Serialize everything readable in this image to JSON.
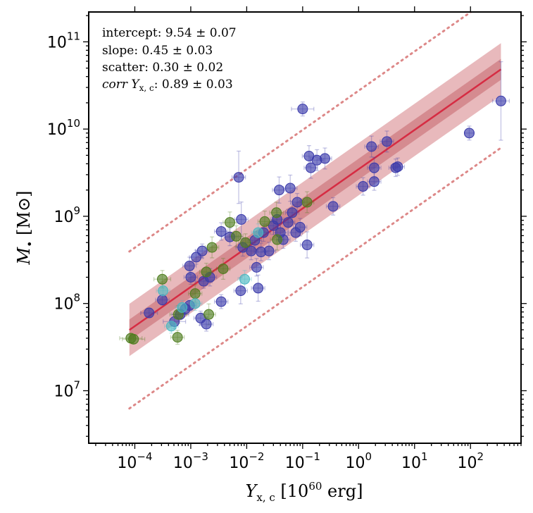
{
  "chart_data": {
    "type": "scatter",
    "xlabel": {
      "main": "Y",
      "sub": "x, c",
      "unit_pre": "[10",
      "unit_exp": "60",
      "unit_post": " erg]"
    },
    "ylabel": {
      "main": "M",
      "sub": "•",
      "unit": "[M⊙]"
    },
    "xscale": "log",
    "yscale": "log",
    "xlim": [
      1.5e-05,
      800
    ],
    "ylim": [
      2500000.0,
      220000000000.0
    ],
    "x_ticks": [
      {
        "value": 0.0001,
        "base": "10",
        "exp": "−4"
      },
      {
        "value": 0.001,
        "base": "10",
        "exp": "−3"
      },
      {
        "value": 0.01,
        "base": "10",
        "exp": "−2"
      },
      {
        "value": 0.1,
        "base": "10",
        "exp": "−1"
      },
      {
        "value": 1,
        "base": "10",
        "exp": "0"
      },
      {
        "value": 10,
        "base": "10",
        "exp": "1"
      },
      {
        "value": 100,
        "base": "10",
        "exp": "2"
      }
    ],
    "y_ticks": [
      {
        "value": 10000000.0,
        "base": "10",
        "exp": "7"
      },
      {
        "value": 100000000.0,
        "base": "10",
        "exp": "8"
      },
      {
        "value": 1000000000.0,
        "base": "10",
        "exp": "9"
      },
      {
        "value": 10000000000.0,
        "base": "10",
        "exp": "10"
      },
      {
        "value": 100000000000.0,
        "base": "10",
        "exp": "11"
      }
    ],
    "annotations": [
      {
        "label": "intercept",
        "value": "9.54 ± 0.07"
      },
      {
        "label": "slope",
        "value": "0.45 ± 0.03"
      },
      {
        "label": "scatter",
        "value": "0.30 ± 0.02"
      },
      {
        "label": "corr Y",
        "sub": "x, c",
        "value": "0.89 ± 0.03"
      }
    ],
    "fit": {
      "intercept": 9.54,
      "slope": 0.45,
      "scatter": 0.3,
      "inner_band": 0.12,
      "outer_band": 0.3,
      "dotted_offset": 0.9
    },
    "colors": {
      "blue": "#3a3aaa",
      "green": "#4e7d1e",
      "cyan": "#4bb9c2",
      "fit_line": "#d62c43",
      "fit_band": "#e0a2a5",
      "fit_band_inner": "#cf7f85",
      "dotted": "#dd8888"
    },
    "series": [
      {
        "color": "blue",
        "points": [
          [
            0.00018,
            78000000.0,
            0.15,
            0.05
          ],
          [
            0.00031,
            110000000.0,
            0.12,
            0.06
          ],
          [
            0.00051,
            62000000.0,
            0.2,
            0.08
          ],
          [
            0.00065,
            75000000.0,
            0.15,
            0.06
          ],
          [
            0.0008,
            87000000.0,
            0.12,
            0.06
          ],
          [
            0.00095,
            270000000.0,
            0.12,
            0.1
          ],
          [
            0.001,
            200000000.0,
            0.12,
            0.08
          ],
          [
            0.00095,
            95000000.0,
            0.12,
            0.06
          ],
          [
            0.00125,
            340000000.0,
            0.12,
            0.08
          ],
          [
            0.0015,
            68000000.0,
            0.12,
            0.08
          ],
          [
            0.0016,
            400000000.0,
            0.12,
            0.08
          ],
          [
            0.0017,
            180000000.0,
            0.15,
            0.08
          ],
          [
            0.0019,
            58000000.0,
            0.12,
            0.08
          ],
          [
            0.0022,
            200000000.0,
            0.12,
            0.1
          ],
          [
            0.0035,
            670000000.0,
            0.12,
            0.1
          ],
          [
            0.0035,
            105000000.0,
            0.12,
            0.08
          ],
          [
            0.005,
            580000000.0,
            0.15,
            0.1
          ],
          [
            0.0072,
            2800000000.0,
            0.12,
            0.3
          ],
          [
            0.0078,
            140000000.0,
            0.12,
            0.15
          ],
          [
            0.008,
            920000000.0,
            0.12,
            0.2
          ],
          [
            0.0085,
            440000000.0,
            0.12,
            0.1
          ],
          [
            0.012,
            400000000.0,
            0.12,
            0.1
          ],
          [
            0.014,
            530000000.0,
            0.12,
            0.1
          ],
          [
            0.015,
            260000000.0,
            0.12,
            0.1
          ],
          [
            0.016,
            150000000.0,
            0.12,
            0.15
          ],
          [
            0.018,
            390000000.0,
            0.12,
            0.1
          ],
          [
            0.02,
            650000000.0,
            0.12,
            0.1
          ],
          [
            0.025,
            400000000.0,
            0.12,
            0.1
          ],
          [
            0.03,
            780000000.0,
            0.12,
            0.1
          ],
          [
            0.035,
            920000000.0,
            0.12,
            0.1
          ],
          [
            0.038,
            2000000000.0,
            0.12,
            0.15
          ],
          [
            0.04,
            650000000.0,
            0.12,
            0.1
          ],
          [
            0.045,
            540000000.0,
            0.12,
            0.1
          ],
          [
            0.055,
            850000000.0,
            0.12,
            0.15
          ],
          [
            0.06,
            2100000000.0,
            0.12,
            0.15
          ],
          [
            0.065,
            1100000000.0,
            0.12,
            0.1
          ],
          [
            0.075,
            650000000.0,
            0.12,
            0.1
          ],
          [
            0.08,
            1450000000.0,
            0.12,
            0.1
          ],
          [
            0.09,
            750000000.0,
            0.12,
            0.1
          ],
          [
            0.1,
            17000000000.0,
            0.2,
            0.08
          ],
          [
            0.12,
            470000000.0,
            0.12,
            0.15
          ],
          [
            0.13,
            4900000000.0,
            0.12,
            0.12
          ],
          [
            0.14,
            3600000000.0,
            0.12,
            0.12
          ],
          [
            0.18,
            4400000000.0,
            0.12,
            0.12
          ],
          [
            0.25,
            4600000000.0,
            0.12,
            0.12
          ],
          [
            0.35,
            1300000000.0,
            0.12,
            0.1
          ],
          [
            1.2,
            2200000000.0,
            0.12,
            0.1
          ],
          [
            1.7,
            6300000000.0,
            0.12,
            0.12
          ],
          [
            1.9,
            3600000000.0,
            0.12,
            0.12
          ],
          [
            1.9,
            2500000000.0,
            0.12,
            0.1
          ],
          [
            3.2,
            7200000000.0,
            0.12,
            0.12
          ],
          [
            4.6,
            3600000000.0,
            0.12,
            0.1
          ],
          [
            5.0,
            3700000000.0,
            0.12,
            0.1
          ],
          [
            95,
            9000000000.0,
            0.08,
            0.08
          ],
          [
            350,
            21000000000.0,
            0.15,
            0.45
          ]
        ]
      },
      {
        "color": "green",
        "points": [
          [
            8.5e-05,
            40000000.0,
            0.2,
            0.05
          ],
          [
            9.5e-05,
            39000000.0,
            0.2,
            0.05
          ],
          [
            0.00031,
            190000000.0,
            0.15,
            0.1
          ],
          [
            0.00058,
            41000000.0,
            0.12,
            0.08
          ],
          [
            0.0006,
            75000000.0,
            0.15,
            0.1
          ],
          [
            0.0012,
            130000000.0,
            0.12,
            0.1
          ],
          [
            0.0019,
            230000000.0,
            0.12,
            0.1
          ],
          [
            0.0021,
            75000000.0,
            0.12,
            0.12
          ],
          [
            0.0024,
            440000000.0,
            0.12,
            0.12
          ],
          [
            0.0038,
            250000000.0,
            0.12,
            0.12
          ],
          [
            0.005,
            850000000.0,
            0.12,
            0.12
          ],
          [
            0.0065,
            590000000.0,
            0.12,
            0.12
          ],
          [
            0.0095,
            500000000.0,
            0.12,
            0.1
          ],
          [
            0.021,
            870000000.0,
            0.12,
            0.12
          ],
          [
            0.034,
            1100000000.0,
            0.12,
            0.12
          ],
          [
            0.035,
            540000000.0,
            0.12,
            0.12
          ],
          [
            0.12,
            1450000000.0,
            0.12,
            0.12
          ]
        ]
      },
      {
        "color": "cyan",
        "points": [
          [
            0.00032,
            140000000.0,
            0.12,
            0.08
          ],
          [
            0.00045,
            55000000.0,
            0.12,
            0.08
          ],
          [
            0.0007,
            90000000.0,
            0.12,
            0.08
          ],
          [
            0.0012,
            100000000.0,
            0.12,
            0.08
          ],
          [
            0.0092,
            190000000.0,
            0.12,
            0.1
          ],
          [
            0.016,
            650000000.0,
            0.12,
            0.1
          ]
        ]
      }
    ]
  }
}
